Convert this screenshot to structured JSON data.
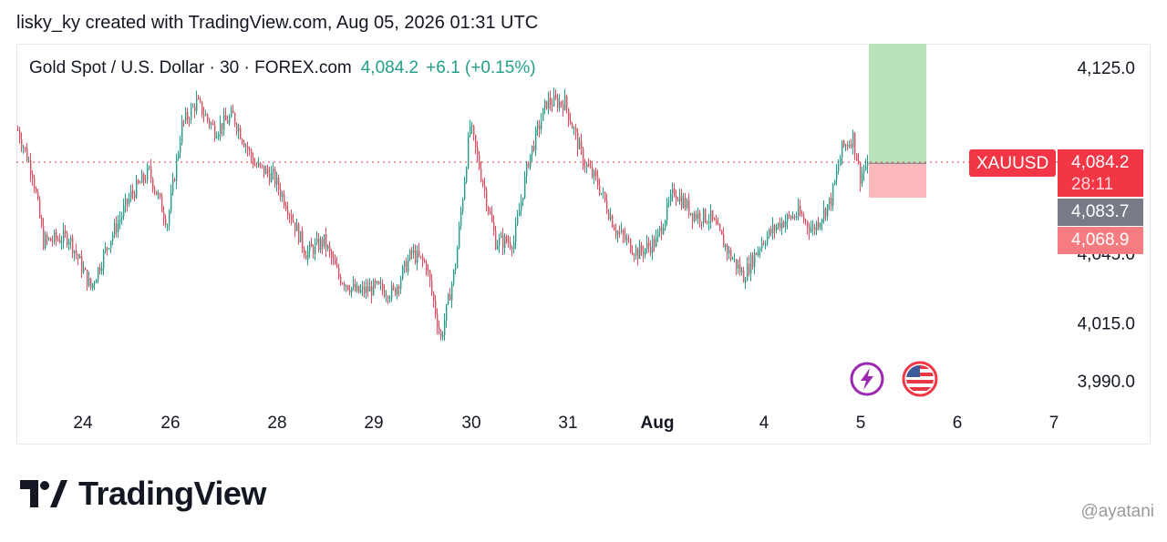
{
  "header": {
    "author_line": "lisky_ky created with TradingView.com, Aug 05, 2026 01:31 UTC"
  },
  "legend": {
    "symbol_line": "Gold Spot / U.S. Dollar · 30 · FOREX.com",
    "price": "4,084.2",
    "change": "+6.1 (+0.15%)"
  },
  "price_tags": {
    "ticker": "XAUUSD",
    "last": "4,084.2",
    "countdown": "28:11",
    "mid": "4,083.7",
    "stop": "4,068.9"
  },
  "events": {
    "flash_icon": "lightning-bolt-icon",
    "flag_icon": "us-flag-icon"
  },
  "brand": {
    "name": "TradingView",
    "logo_icon": "tradingview-logo-icon"
  },
  "watermark": "@ayatani",
  "colors": {
    "up": "#22a08a",
    "down": "#e54d5e",
    "last_price": "#f23645",
    "target_zone": "#b8e2b8",
    "stop_zone": "#fbb9bc"
  },
  "chart_data": {
    "type": "candlestick",
    "title": "Gold Spot / U.S. Dollar · 30 · FOREX.com",
    "timeframe": "30",
    "x_ticks": [
      "24",
      "26",
      "28",
      "29",
      "30",
      "31",
      "Aug",
      "4",
      "5",
      "6",
      "7"
    ],
    "y_ticks": [
      3990.0,
      4015.0,
      4045.0,
      4125.0
    ],
    "y_tick_labels": [
      "3,990.0",
      "4,015.0",
      "4,045.0",
      "4,125.0"
    ],
    "ylim": [
      3982,
      4140
    ],
    "last_price": 4084.2,
    "grid": false,
    "position_tool": {
      "entry": 4083.7,
      "stop": 4068.9,
      "target": 4125.0
    },
    "anchors": [
      {
        "t": 0,
        "p": 4098
      },
      {
        "t": 8,
        "p": 4080
      },
      {
        "t": 14,
        "p": 4050
      },
      {
        "t": 28,
        "p": 4052
      },
      {
        "t": 40,
        "p": 4030
      },
      {
        "t": 50,
        "p": 4050
      },
      {
        "t": 62,
        "p": 4070
      },
      {
        "t": 72,
        "p": 4080
      },
      {
        "t": 82,
        "p": 4058
      },
      {
        "t": 90,
        "p": 4100
      },
      {
        "t": 98,
        "p": 4110
      },
      {
        "t": 108,
        "p": 4098
      },
      {
        "t": 118,
        "p": 4104
      },
      {
        "t": 130,
        "p": 4083
      },
      {
        "t": 140,
        "p": 4078
      },
      {
        "t": 148,
        "p": 4065
      },
      {
        "t": 158,
        "p": 4045
      },
      {
        "t": 168,
        "p": 4050
      },
      {
        "t": 176,
        "p": 4035
      },
      {
        "t": 186,
        "p": 4028
      },
      {
        "t": 196,
        "p": 4030
      },
      {
        "t": 206,
        "p": 4028
      },
      {
        "t": 216,
        "p": 4045
      },
      {
        "t": 224,
        "p": 4040
      },
      {
        "t": 232,
        "p": 4008
      },
      {
        "t": 240,
        "p": 4040
      },
      {
        "t": 248,
        "p": 4100
      },
      {
        "t": 256,
        "p": 4072
      },
      {
        "t": 262,
        "p": 4050
      },
      {
        "t": 272,
        "p": 4050
      },
      {
        "t": 280,
        "p": 4085
      },
      {
        "t": 290,
        "p": 4110
      },
      {
        "t": 300,
        "p": 4110
      },
      {
        "t": 310,
        "p": 4085
      },
      {
        "t": 318,
        "p": 4075
      },
      {
        "t": 328,
        "p": 4055
      },
      {
        "t": 340,
        "p": 4045
      },
      {
        "t": 350,
        "p": 4050
      },
      {
        "t": 360,
        "p": 4072
      },
      {
        "t": 370,
        "p": 4062
      },
      {
        "t": 380,
        "p": 4060
      },
      {
        "t": 390,
        "p": 4045
      },
      {
        "t": 398,
        "p": 4035
      },
      {
        "t": 408,
        "p": 4050
      },
      {
        "t": 418,
        "p": 4058
      },
      {
        "t": 428,
        "p": 4062
      },
      {
        "t": 436,
        "p": 4055
      },
      {
        "t": 446,
        "p": 4068
      },
      {
        "t": 452,
        "p": 4090
      },
      {
        "t": 458,
        "p": 4095
      },
      {
        "t": 462,
        "p": 4078
      },
      {
        "t": 466,
        "p": 4084.2
      }
    ]
  }
}
